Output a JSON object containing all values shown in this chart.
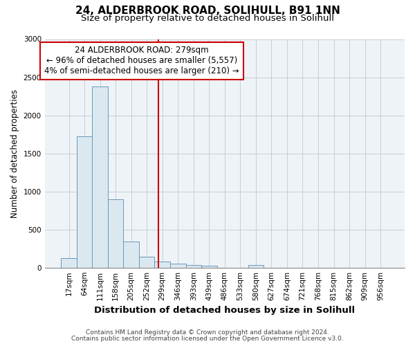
{
  "title1": "24, ALDERBROOK ROAD, SOLIHULL, B91 1NN",
  "title2": "Size of property relative to detached houses in Solihull",
  "xlabel": "Distribution of detached houses by size in Solihull",
  "ylabel": "Number of detached properties",
  "bar_labels": [
    "17sqm",
    "64sqm",
    "111sqm",
    "158sqm",
    "205sqm",
    "252sqm",
    "299sqm",
    "346sqm",
    "393sqm",
    "439sqm",
    "486sqm",
    "533sqm",
    "580sqm",
    "627sqm",
    "674sqm",
    "721sqm",
    "768sqm",
    "815sqm",
    "862sqm",
    "909sqm",
    "956sqm"
  ],
  "bar_values": [
    120,
    1720,
    2380,
    900,
    340,
    145,
    80,
    55,
    35,
    20,
    0,
    0,
    30,
    0,
    0,
    0,
    0,
    0,
    0,
    0,
    0
  ],
  "bar_color": "#dce8f0",
  "bar_edge_color": "#6699bb",
  "property_line_x": 5.74,
  "property_line_color": "#cc0000",
  "annotation_line1": "24 ALDERBROOK ROAD: 279sqm",
  "annotation_line2": "← 96% of detached houses are smaller (5,557)",
  "annotation_line3": "4% of semi-detached houses are larger (210) →",
  "annotation_box_edge_color": "#cc0000",
  "ylim": [
    0,
    3000
  ],
  "yticks": [
    0,
    500,
    1000,
    1500,
    2000,
    2500,
    3000
  ],
  "footer1": "Contains HM Land Registry data © Crown copyright and database right 2024.",
  "footer2": "Contains public sector information licensed under the Open Government Licence v3.0.",
  "plot_bg_color": "#eef3f8",
  "grid_color": "#c0c8d0",
  "title1_fontsize": 11,
  "title2_fontsize": 9.5,
  "xlabel_fontsize": 9.5,
  "ylabel_fontsize": 8.5,
  "tick_fontsize": 7.5,
  "annot_fontsize": 8.5,
  "footer_fontsize": 6.5
}
